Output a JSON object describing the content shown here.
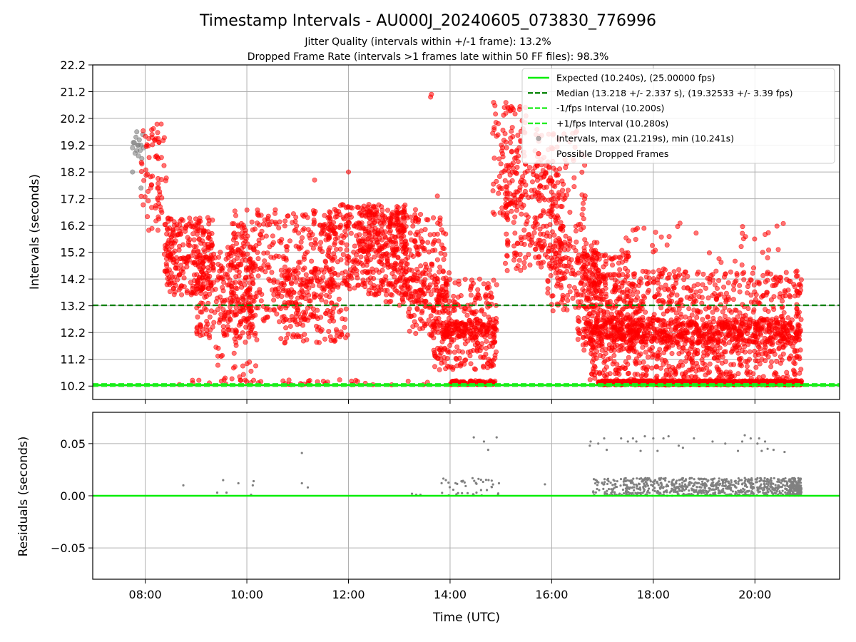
{
  "title": "Timestamp Intervals - AU000J_20240605_073830_776996",
  "subtitle_1": "Jitter Quality (intervals within +/-1 frame): 13.2%",
  "subtitle_2": "Dropped Frame Rate (intervals >1 frames late within 50 FF files): 98.3%",
  "colors": {
    "expected": "#00ee00",
    "median": "#008000",
    "fps_band": "#22ee22",
    "normal_points": "#808080",
    "dropped_points": "#ff0000"
  },
  "chart_data": [
    {
      "type": "scatter",
      "panel": "top",
      "xlabel": "",
      "ylabel": "Intervals (seconds)",
      "xlim": [
        "06:58",
        "21:40"
      ],
      "ylim": [
        9.7,
        22.2
      ],
      "x_ticks": [
        "08:00",
        "10:00",
        "12:00",
        "14:00",
        "16:00",
        "18:00",
        "20:00"
      ],
      "y_ticks": [
        "10.2",
        "11.2",
        "12.2",
        "13.2",
        "14.2",
        "15.2",
        "16.2",
        "17.2",
        "18.2",
        "19.2",
        "20.2",
        "21.2",
        "22.2"
      ],
      "grid": true,
      "legend_position": "top-right",
      "reference_lines": [
        {
          "name": "Expected (10.240s), (25.00000 fps)",
          "y": 10.24,
          "style": "solid",
          "color": "#00ee00"
        },
        {
          "name": "Median (13.218 +/- 2.337 s), (19.32533 +/- 3.39 fps)",
          "y": 13.218,
          "style": "dashed",
          "color": "#008000"
        },
        {
          "name": "-1/fps Interval (10.200s)",
          "y": 10.2,
          "style": "dashed",
          "color": "#22ee22"
        },
        {
          "name": "+1/fps Interval (10.280s)",
          "y": 10.28,
          "style": "dashed",
          "color": "#22ee22"
        }
      ],
      "series": [
        {
          "name": "Intervals, max (21.219s), min (10.241s)",
          "color": "#808080",
          "points": [
            [
              "07:45",
              19.1
            ],
            [
              "07:47",
              19.3
            ],
            [
              "07:48",
              18.9
            ],
            [
              "07:49",
              19.5
            ],
            [
              "07:50",
              19.0
            ],
            [
              "07:51",
              19.2
            ],
            [
              "07:52",
              18.8
            ],
            [
              "07:53",
              19.4
            ],
            [
              "07:54",
              19.0
            ],
            [
              "07:55",
              19.2
            ],
            [
              "07:56",
              18.7
            ],
            [
              "07:57",
              19.6
            ],
            [
              "07:58",
              19.1
            ],
            [
              "07:45",
              18.2
            ],
            [
              "07:55",
              17.6
            ],
            [
              "07:46",
              19.3
            ],
            [
              "07:50",
              19.7
            ],
            [
              "07:52",
              19.2
            ]
          ]
        },
        {
          "name": "Possible Dropped Frames",
          "color": "#ff0000",
          "clusters": [
            {
              "t0": "07:55",
              "t1": "08:25",
              "y0": 16.0,
              "y1": 20.0,
              "n": 70
            },
            {
              "t0": "08:22",
              "t1": "08:35",
              "y0": 14.2,
              "y1": 16.5,
              "n": 40
            },
            {
              "t0": "08:25",
              "t1": "09:20",
              "y0": 13.6,
              "y1": 16.5,
              "n": 210
            },
            {
              "t0": "09:00",
              "t1": "10:10",
              "y0": 12.0,
              "y1": 15.5,
              "n": 260
            },
            {
              "t0": "09:15",
              "t1": "10:15",
              "y0": 10.4,
              "y1": 12.6,
              "n": 35
            },
            {
              "t0": "09:40",
              "t1": "11:40",
              "y0": 12.6,
              "y1": 16.8,
              "n": 380
            },
            {
              "t0": "10:40",
              "t1": "12:00",
              "y0": 11.8,
              "y1": 14.6,
              "n": 150
            },
            {
              "t0": "11:35",
              "t1": "13:10",
              "y0": 13.6,
              "y1": 17.0,
              "n": 380
            },
            {
              "t0": "12:10",
              "t1": "13:30",
              "y0": 15.0,
              "y1": 16.8,
              "n": 110
            },
            {
              "t0": "12:40",
              "t1": "13:55",
              "y0": 13.2,
              "y1": 16.5,
              "n": 150
            },
            {
              "t0": "13:10",
              "t1": "14:00",
              "y0": 12.0,
              "y1": 14.6,
              "n": 120
            },
            {
              "t0": "13:40",
              "t1": "14:55",
              "y0": 10.8,
              "y1": 14.2,
              "n": 260
            },
            {
              "t0": "13:50",
              "t1": "14:55",
              "y0": 12.0,
              "y1": 12.6,
              "n": 120
            },
            {
              "t0": "14:00",
              "t1": "14:55",
              "y0": 10.25,
              "y1": 10.4,
              "n": 90
            },
            {
              "t0": "14:50",
              "t1": "15:30",
              "y0": 16.5,
              "y1": 20.8,
              "n": 120
            },
            {
              "t0": "15:05",
              "t1": "16:15",
              "y0": 14.5,
              "y1": 18.5,
              "n": 200
            },
            {
              "t0": "15:40",
              "t1": "16:40",
              "y0": 15.0,
              "y1": 19.8,
              "n": 120
            },
            {
              "t0": "15:55",
              "t1": "16:55",
              "y0": 13.0,
              "y1": 15.6,
              "n": 140
            },
            {
              "t0": "16:30",
              "t1": "17:40",
              "y0": 11.5,
              "y1": 15.2,
              "n": 220
            },
            {
              "t0": "16:40",
              "t1": "20:55",
              "y0": 11.8,
              "y1": 12.7,
              "n": 700
            },
            {
              "t0": "16:45",
              "t1": "20:55",
              "y0": 12.7,
              "y1": 14.5,
              "n": 420
            },
            {
              "t0": "16:45",
              "t1": "20:55",
              "y0": 10.4,
              "y1": 11.8,
              "n": 380
            },
            {
              "t0": "16:55",
              "t1": "20:55",
              "y0": 10.24,
              "y1": 10.4,
              "n": 1000
            },
            {
              "t0": "17:00",
              "t1": "20:50",
              "y0": 14.5,
              "y1": 16.4,
              "n": 45
            },
            {
              "t0": "08:40",
              "t1": "13:40",
              "y0": 10.24,
              "y1": 10.45,
              "n": 40
            }
          ],
          "points": [
            [
              "13:38",
              21.1
            ],
            [
              "13:37",
              21.0
            ],
            [
              "07:56",
              18.5
            ],
            [
              "08:08",
              19.6
            ],
            [
              "12:00",
              18.2
            ],
            [
              "11:20",
              17.9
            ],
            [
              "13:45",
              17.3
            ]
          ]
        }
      ]
    },
    {
      "type": "scatter",
      "panel": "bottom",
      "xlabel": "Time (UTC)",
      "ylabel": "Residuals (seconds)",
      "xlim": [
        "06:58",
        "21:40"
      ],
      "ylim": [
        -0.08,
        0.08
      ],
      "x_ticks": [
        "08:00",
        "10:00",
        "12:00",
        "14:00",
        "16:00",
        "18:00",
        "20:00"
      ],
      "y_ticks": [
        "−0.05",
        "0.00",
        "0.05"
      ],
      "y_tick_values": [
        -0.05,
        0.0,
        0.05
      ],
      "grid": true,
      "reference_lines": [
        {
          "y": 0.0,
          "color": "#00ee00"
        }
      ],
      "series": [
        {
          "color": "#808080",
          "points": [
            [
              "08:45",
              0.01
            ],
            [
              "09:25",
              0.003
            ],
            [
              "09:32",
              0.015
            ],
            [
              "09:36",
              0.003
            ],
            [
              "09:50",
              0.012
            ],
            [
              "10:05",
              0.001
            ],
            [
              "10:07",
              0.01
            ],
            [
              "10:08",
              0.014
            ],
            [
              "11:05",
              0.041
            ],
            [
              "11:05",
              0.012
            ],
            [
              "11:12",
              0.008
            ],
            [
              "13:15",
              0.002
            ],
            [
              "13:20",
              0.001
            ],
            [
              "13:25",
              0.001
            ],
            [
              "13:55",
              0.015
            ],
            [
              "14:28",
              0.056
            ],
            [
              "14:40",
              0.052
            ],
            [
              "14:45",
              0.044
            ],
            [
              "14:55",
              0.056
            ],
            [
              "15:52",
              0.011
            ],
            [
              "16:45",
              0.048
            ],
            [
              "16:46",
              0.052
            ],
            [
              "16:55",
              0.05
            ],
            [
              "17:02",
              0.055
            ],
            [
              "17:05",
              0.044
            ],
            [
              "17:22",
              0.055
            ],
            [
              "17:30",
              0.052
            ],
            [
              "17:36",
              0.055
            ],
            [
              "17:40",
              0.052
            ],
            [
              "17:45",
              0.043
            ],
            [
              "17:50",
              0.057
            ],
            [
              "18:00",
              0.055
            ],
            [
              "18:05",
              0.043
            ],
            [
              "18:12",
              0.055
            ],
            [
              "18:18",
              0.057
            ],
            [
              "18:30",
              0.048
            ],
            [
              "18:35",
              0.046
            ],
            [
              "18:48",
              0.055
            ],
            [
              "19:10",
              0.052
            ],
            [
              "19:25",
              0.05
            ],
            [
              "19:40",
              0.043
            ],
            [
              "19:45",
              0.052
            ],
            [
              "19:48",
              0.058
            ],
            [
              "19:55",
              0.055
            ],
            [
              "20:03",
              0.05
            ],
            [
              "20:05",
              0.055
            ],
            [
              "20:08",
              0.043
            ],
            [
              "20:12",
              0.052
            ],
            [
              "20:15",
              0.045
            ],
            [
              "20:22",
              0.044
            ],
            [
              "20:35",
              0.042
            ]
          ],
          "clusters": [
            {
              "t0": "13:50",
              "t1": "14:58",
              "y0": 0.0,
              "y1": 0.017,
              "n": 40
            },
            {
              "t0": "16:48",
              "t1": "17:25",
              "y0": 0.0,
              "y1": 0.017,
              "n": 60
            },
            {
              "t0": "17:25",
              "t1": "20:55",
              "y0": 0.0,
              "y1": 0.017,
              "n": 700
            },
            {
              "t0": "20:40",
              "t1": "20:55",
              "y0": 0.0,
              "y1": 0.017,
              "n": 120
            }
          ]
        }
      ]
    }
  ]
}
